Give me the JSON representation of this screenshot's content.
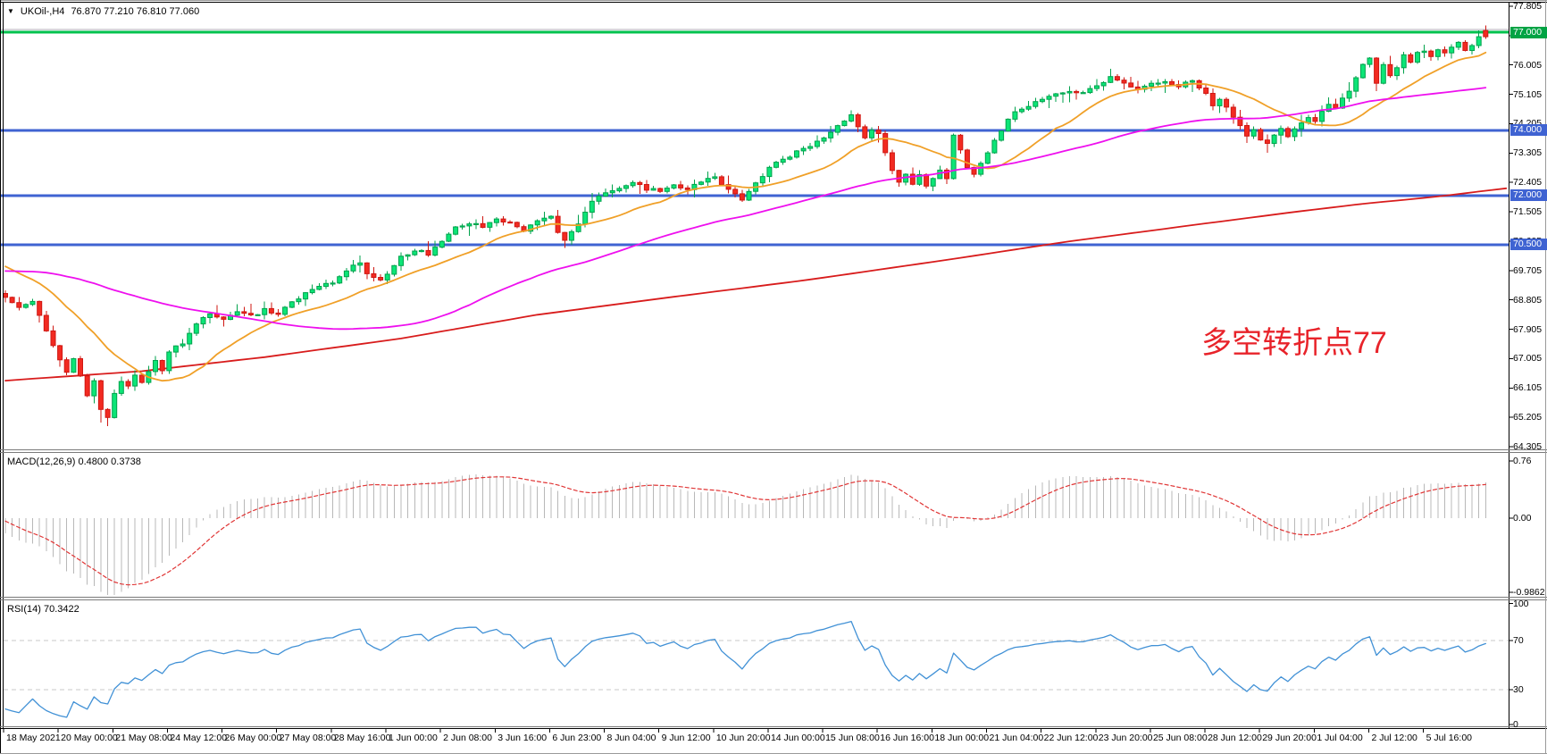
{
  "header": {
    "symbol_period": "UKOil-,H4",
    "ohlc_text": "76.870 77.210 76.810 77.060",
    "dropdown_icon": "▼"
  },
  "chart_data": {
    "type": "candlestick",
    "symbol": "UKOil-",
    "timeframe": "H4",
    "title": "UKOil-,H4",
    "last_bar_ohlc": {
      "open": 76.87,
      "high": 77.21,
      "low": 76.81,
      "close": 77.06,
      "render_color": "down"
    },
    "price_axis": {
      "max": 77.805,
      "min": 64.305,
      "step": 0.9,
      "ticks": [
        "77.805",
        "76.905",
        "76.005",
        "75.105",
        "74.205",
        "73.305",
        "72.405",
        "71.505",
        "70.605",
        "69.705",
        "68.805",
        "67.905",
        "67.005",
        "66.105",
        "65.205",
        "64.305"
      ]
    },
    "time_axis": {
      "labels": [
        "18 May 2021",
        "20 May 00:00",
        "21 May 08:00",
        "24 May 12:00",
        "26 May 00:00",
        "27 May 08:00",
        "28 May 16:00",
        "1 Jun 00:00",
        "2 Jun 08:00",
        "3 Jun 16:00",
        "6 Jun 23:00",
        "8 Jun 04:00",
        "9 Jun 12:00",
        "10 Jun 20:00",
        "14 Jun 00:00",
        "15 Jun 08:00",
        "16 Jun 16:00",
        "18 Jun 00:00",
        "21 Jun 04:00",
        "22 Jun 12:00",
        "23 Jun 20:00",
        "25 Jun 08:00",
        "28 Jun 12:00",
        "29 Jun 20:00",
        "1 Jul 04:00",
        "2 Jul 12:00",
        "5 Jul 16:00"
      ]
    },
    "levels": [
      {
        "price": 77.0,
        "label": "77.000",
        "line_color": "#00c24e",
        "label_bg": "#00a344",
        "type": "resistance"
      },
      {
        "price": 74.0,
        "label": "74.000",
        "line_color": "#3f63d2",
        "label_bg": "#3f63d2",
        "type": "support"
      },
      {
        "price": 72.0,
        "label": "72.000",
        "line_color": "#3f63d2",
        "label_bg": "#3f63d2",
        "type": "support"
      },
      {
        "price": 70.5,
        "label": "70.500",
        "line_color": "#3f63d2",
        "label_bg": "#3f63d2",
        "type": "support"
      }
    ],
    "last_price_line": {
      "price": 77.06,
      "color": "#b0b0b8"
    },
    "annotation": {
      "text": "多空转折点77",
      "color": "#e8232a"
    },
    "candle_colors": {
      "up_fill": "#0ce577",
      "up_stroke": "#00a24c",
      "down_fill": "#f22a21",
      "down_stroke": "#cf1712"
    },
    "prehistory": [
      [
        -60,
        68.6
      ],
      [
        -45,
        69.2
      ],
      [
        -30,
        69.9
      ],
      [
        -15,
        70.35
      ],
      [
        -8,
        70.1
      ],
      [
        -3,
        69.4
      ],
      [
        -1,
        69.0
      ]
    ],
    "price_path": [
      [
        0,
        68.85
      ],
      [
        2,
        68.55
      ],
      [
        4,
        68.75
      ],
      [
        6,
        67.9
      ],
      [
        8,
        67.0
      ],
      [
        9,
        66.6
      ],
      [
        10,
        67.05
      ],
      [
        11,
        66.5
      ],
      [
        12,
        65.9
      ],
      [
        13,
        66.3
      ],
      [
        14,
        65.4
      ],
      [
        15,
        65.15
      ],
      [
        16,
        65.9
      ],
      [
        17,
        66.3
      ],
      [
        18,
        66.15
      ],
      [
        19,
        66.5
      ],
      [
        20,
        66.3
      ],
      [
        21,
        66.6
      ],
      [
        22,
        66.9
      ],
      [
        23,
        66.65
      ],
      [
        24,
        67.25
      ],
      [
        26,
        67.5
      ],
      [
        28,
        68.1
      ],
      [
        30,
        68.4
      ],
      [
        32,
        68.25
      ],
      [
        34,
        68.45
      ],
      [
        36,
        68.3
      ],
      [
        38,
        68.5
      ],
      [
        40,
        68.35
      ],
      [
        42,
        68.75
      ],
      [
        44,
        69.0
      ],
      [
        46,
        69.2
      ],
      [
        48,
        69.35
      ],
      [
        50,
        69.7
      ],
      [
        52,
        69.95
      ],
      [
        53,
        69.6
      ],
      [
        55,
        69.4
      ],
      [
        56,
        69.6
      ],
      [
        58,
        70.1
      ],
      [
        60,
        70.35
      ],
      [
        62,
        70.2
      ],
      [
        64,
        70.6
      ],
      [
        66,
        71.0
      ],
      [
        68,
        71.15
      ],
      [
        70,
        71.05
      ],
      [
        72,
        71.3
      ],
      [
        74,
        71.15
      ],
      [
        76,
        70.9
      ],
      [
        78,
        71.25
      ],
      [
        80,
        71.35
      ],
      [
        81,
        70.9
      ],
      [
        82,
        70.65
      ],
      [
        84,
        71.1
      ],
      [
        86,
        71.8
      ],
      [
        88,
        72.1
      ],
      [
        90,
        72.2
      ],
      [
        92,
        72.45
      ],
      [
        94,
        72.2
      ],
      [
        96,
        72.15
      ],
      [
        98,
        72.35
      ],
      [
        100,
        72.2
      ],
      [
        102,
        72.45
      ],
      [
        104,
        72.55
      ],
      [
        106,
        72.2
      ],
      [
        108,
        71.9
      ],
      [
        110,
        72.4
      ],
      [
        112,
        72.85
      ],
      [
        114,
        73.1
      ],
      [
        116,
        73.35
      ],
      [
        118,
        73.5
      ],
      [
        120,
        73.75
      ],
      [
        122,
        74.15
      ],
      [
        124,
        74.5
      ],
      [
        125,
        74.1
      ],
      [
        126,
        73.75
      ],
      [
        127,
        74.0
      ],
      [
        128,
        73.9
      ],
      [
        129,
        73.3
      ],
      [
        130,
        72.75
      ],
      [
        131,
        72.4
      ],
      [
        132,
        72.7
      ],
      [
        133,
        72.35
      ],
      [
        134,
        72.6
      ],
      [
        135,
        72.3
      ],
      [
        136,
        72.5
      ],
      [
        137,
        72.8
      ],
      [
        138,
        72.55
      ],
      [
        139,
        73.9
      ],
      [
        140,
        73.4
      ],
      [
        141,
        72.9
      ],
      [
        142,
        72.65
      ],
      [
        143,
        73.0
      ],
      [
        144,
        73.3
      ],
      [
        145,
        73.7
      ],
      [
        146,
        74.0
      ],
      [
        147,
        74.3
      ],
      [
        148,
        74.55
      ],
      [
        150,
        74.75
      ],
      [
        152,
        74.95
      ],
      [
        154,
        75.15
      ],
      [
        156,
        75.2
      ],
      [
        158,
        75.2
      ],
      [
        160,
        75.4
      ],
      [
        162,
        75.6
      ],
      [
        164,
        75.45
      ],
      [
        166,
        75.3
      ],
      [
        168,
        75.45
      ],
      [
        170,
        75.5
      ],
      [
        172,
        75.35
      ],
      [
        174,
        75.55
      ],
      [
        175,
        75.3
      ],
      [
        176,
        75.1
      ],
      [
        177,
        74.8
      ],
      [
        178,
        75.0
      ],
      [
        179,
        74.7
      ],
      [
        180,
        74.4
      ],
      [
        181,
        74.1
      ],
      [
        182,
        73.85
      ],
      [
        183,
        74.0
      ],
      [
        184,
        73.75
      ],
      [
        185,
        73.65
      ],
      [
        186,
        73.9
      ],
      [
        187,
        74.1
      ],
      [
        188,
        73.8
      ],
      [
        189,
        74.0
      ],
      [
        190,
        74.25
      ],
      [
        191,
        74.4
      ],
      [
        192,
        74.3
      ],
      [
        193,
        74.55
      ],
      [
        194,
        74.75
      ],
      [
        195,
        74.7
      ],
      [
        196,
        74.95
      ],
      [
        197,
        75.2
      ],
      [
        198,
        75.6
      ],
      [
        199,
        76.0
      ],
      [
        200,
        76.25
      ],
      [
        201,
        75.4
      ],
      [
        202,
        76.0
      ],
      [
        203,
        75.7
      ],
      [
        204,
        75.95
      ],
      [
        205,
        76.3
      ],
      [
        206,
        76.1
      ],
      [
        207,
        76.35
      ],
      [
        208,
        76.45
      ],
      [
        209,
        76.3
      ],
      [
        210,
        76.5
      ],
      [
        211,
        76.4
      ],
      [
        212,
        76.55
      ],
      [
        213,
        76.7
      ],
      [
        214,
        76.45
      ],
      [
        215,
        76.6
      ],
      [
        216,
        76.87
      ],
      [
        217,
        77.06
      ]
    ],
    "moving_averages": [
      {
        "name": "fast",
        "method": "sma",
        "window": 16,
        "color": "#f0a028"
      },
      {
        "name": "mid",
        "method": "sma",
        "window": 55,
        "color": "#ee10ee"
      },
      {
        "name": "slow",
        "method": "waypoints",
        "color": "#d81c1c",
        "waypoints": [
          [
            0,
            66.33
          ],
          [
            20,
            66.62
          ],
          [
            38,
            67.05
          ],
          [
            58,
            67.62
          ],
          [
            78,
            68.35
          ],
          [
            98,
            68.9
          ],
          [
            117,
            69.4
          ],
          [
            137,
            70.0
          ],
          [
            156,
            70.6
          ],
          [
            176,
            71.15
          ],
          [
            189,
            71.5
          ],
          [
            199,
            71.75
          ],
          [
            209,
            71.95
          ],
          [
            221,
            72.25
          ]
        ]
      }
    ],
    "macd": {
      "label": "MACD(12,26,9) 0.4800 0.3738",
      "name": "MACD",
      "params": [
        12,
        26,
        9
      ],
      "values": {
        "macd": 0.48,
        "signal": 0.3738
      },
      "axis_ticks": [
        "0.76",
        "0.00",
        "-0.9862"
      ],
      "axis_values": [
        0.76,
        0,
        -0.9862
      ],
      "histogram_color": "#b8b8b8",
      "signal_color": "#e03535"
    },
    "rsi": {
      "label": "RSI(14) 70.3422",
      "name": "RSI",
      "period": 14,
      "value": 70.3422,
      "axis_ticks": [
        "100",
        "70",
        "30",
        "0"
      ],
      "axis_values": [
        100,
        70,
        30,
        0
      ],
      "levels": [
        70,
        30
      ],
      "line_color": "#4191d6",
      "level_color": "#c8c8c8"
    }
  }
}
